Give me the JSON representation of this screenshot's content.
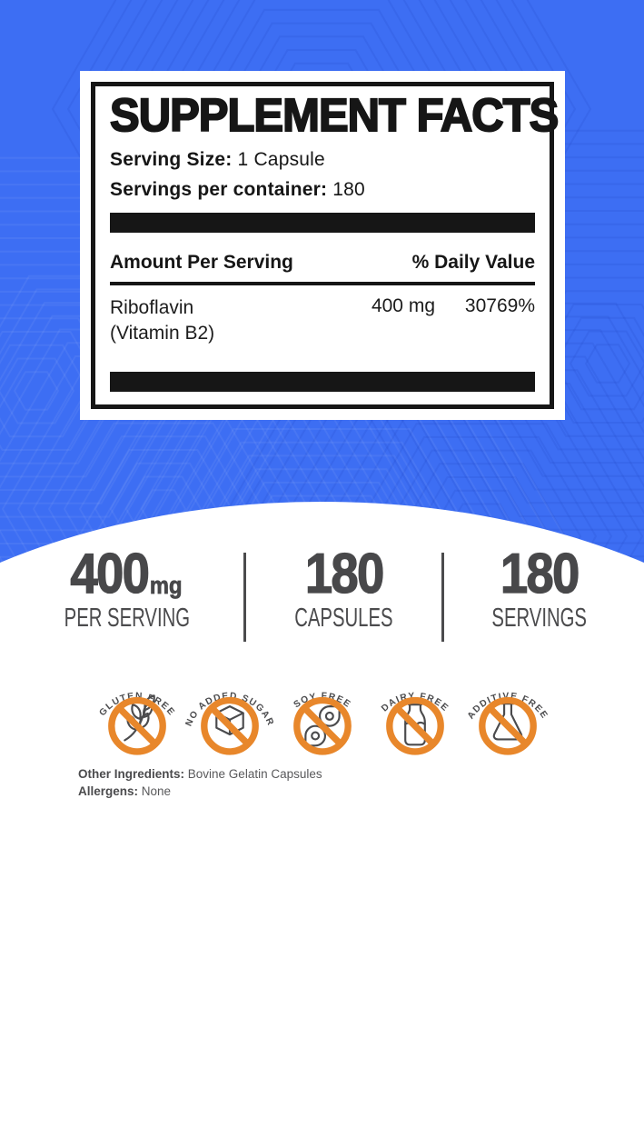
{
  "facts_panel": {
    "title": "SUPPLEMENT FACTS",
    "serving_size_label": "Serving Size:",
    "serving_size_value": "1 Capsule",
    "servings_per_container_label": "Servings per container:",
    "servings_per_container_value": "180",
    "columns": {
      "amount": "Amount Per Serving",
      "daily_value": "% Daily Value"
    },
    "rows": [
      {
        "name_line1": "Riboflavin",
        "name_line2": "(Vitamin B2)",
        "amount": "400 mg",
        "daily_value": "30769%"
      }
    ]
  },
  "stats": [
    {
      "value": "400",
      "unit": "mg",
      "label": "PER SERVING"
    },
    {
      "value": "180",
      "unit": "",
      "label": "CAPSULES"
    },
    {
      "value": "180",
      "unit": "",
      "label": "SERVINGS"
    }
  ],
  "badges": [
    {
      "label": "GLUTEN FREE",
      "icon": "wheat-icon"
    },
    {
      "label": "NO ADDED SUGAR",
      "icon": "sugar-cube-icon"
    },
    {
      "label": "SOY FREE",
      "icon": "soybean-icon"
    },
    {
      "label": "DAIRY FREE",
      "icon": "milk-bottle-icon"
    },
    {
      "label": "ADDITIVE FREE",
      "icon": "flask-icon"
    }
  ],
  "footer": {
    "other_ingredients_label": "Other Ingredients:",
    "other_ingredients_value": "Bovine Gelatin Capsules",
    "allergens_label": "Allergens:",
    "allergens_value": "None"
  },
  "colors": {
    "background_blue": "#3d6ef3",
    "accent_orange": "#e8872b",
    "stat_text": "#48484a",
    "panel_black": "#161616"
  }
}
